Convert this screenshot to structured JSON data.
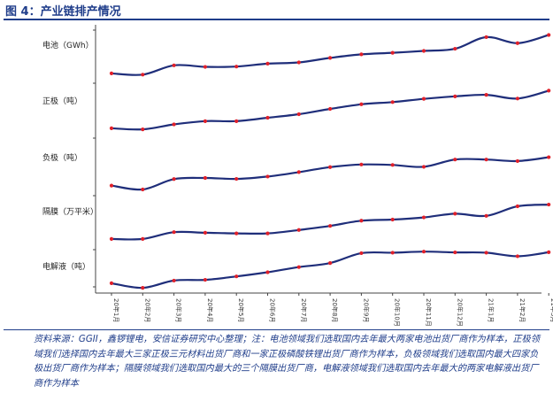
{
  "figure": {
    "title": "图 4：产业链排产情况"
  },
  "note": "资料来源：GGII，鑫锣锂电，安信证券研究中心整理；注：电池领域我们选取国内去年最大两家电池出货厂商作为样本，正极领域我们选择国内去年最大三家正极三元材料出货厂商和一家正极磷酸铁锂出货厂商作为样本，负极领域我们选取国内最大四家负极出货厂商作为样本；隔膜领域我们选取国内最大的三个隔膜出货厂商，电解液领域我们选取国内去年最大的两家电解液出货厂商作为样本",
  "chart_data": {
    "type": "line",
    "title": "",
    "categories": [
      "20年1月",
      "20年2月",
      "20年3月",
      "20年4月",
      "20年5月",
      "20年6月",
      "20年7月",
      "20年8月",
      "20年9月",
      "20年10月",
      "20年11月",
      "20年12月",
      "21年1月",
      "21年2月",
      "21年3月"
    ],
    "series": [
      {
        "name": "电池（GWh）",
        "values": [
          0.12,
          0.04,
          0.64,
          0.54,
          0.56,
          0.75,
          0.83,
          1.12,
          1.35,
          1.45,
          1.57,
          1.71,
          2.46,
          2.07,
          2.6
        ]
      },
      {
        "name": "正极（吨）",
        "values": [
          0.12,
          0.05,
          0.37,
          0.58,
          0.58,
          0.8,
          1.03,
          1.37,
          1.67,
          1.81,
          2.02,
          2.18,
          2.28,
          2.04,
          2.55
        ]
      },
      {
        "name": "负极（吨）",
        "values": [
          0.08,
          -0.17,
          0.5,
          0.57,
          0.51,
          0.66,
          0.95,
          1.27,
          1.44,
          1.41,
          1.29,
          1.76,
          1.76,
          1.66,
          1.91
        ]
      },
      {
        "name": "隔膜（万平米）",
        "values": [
          0.12,
          0.12,
          0.56,
          0.52,
          0.48,
          0.48,
          0.7,
          0.96,
          1.3,
          1.37,
          1.51,
          1.75,
          1.61,
          2.23,
          2.34
        ]
      },
      {
        "name": "电解液（吨）",
        "values": [
          0.12,
          -0.18,
          0.29,
          0.34,
          0.56,
          0.83,
          1.16,
          1.42,
          2.06,
          2.09,
          2.16,
          2.11,
          2.09,
          1.86,
          2.12
        ]
      }
    ],
    "grid": false,
    "legend": "none"
  },
  "colors": {
    "line": "#1f2e7a",
    "marker": "#e0202a",
    "accent": "#1f3d8a"
  }
}
